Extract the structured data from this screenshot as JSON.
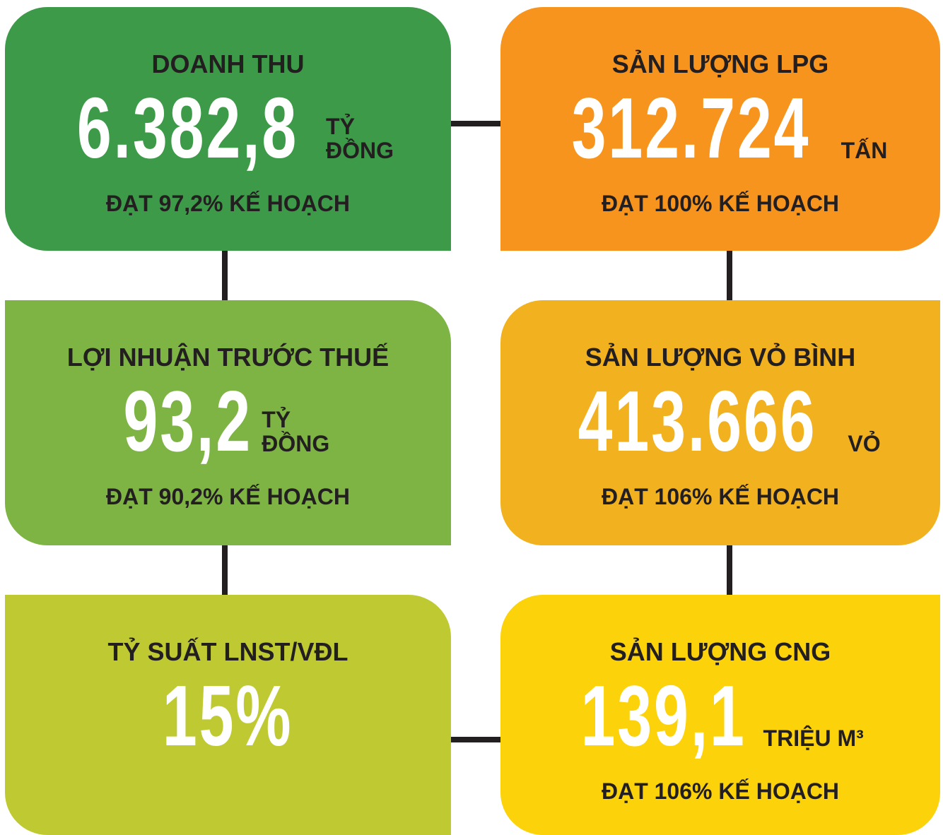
{
  "cards": [
    {
      "title": "DOANH THU",
      "value": "6.382,8",
      "unit": [
        "TỶ",
        "ĐỒNG"
      ],
      "note": "ĐẠT 97,2% KẾ HOẠCH"
    },
    {
      "title": "SẢN LƯỢNG LPG",
      "value": "312.724",
      "unit": [
        "TẤN"
      ],
      "note": "ĐẠT 100% KẾ HOẠCH"
    },
    {
      "title": "LỢI NHUẬN TRƯỚC THUẾ",
      "value": "93,2",
      "unit": [
        "TỶ",
        "ĐỒNG"
      ],
      "note": "ĐẠT 90,2% KẾ HOẠCH"
    },
    {
      "title": "SẢN LƯỢNG VỎ BÌNH",
      "value": "413.666",
      "unit": [
        "VỎ"
      ],
      "note": "ĐẠT 106% KẾ HOẠCH"
    },
    {
      "title": "TỶ SUẤT LNST/VĐL",
      "value": "15%"
    },
    {
      "title": "SẢN LƯỢNG CNG",
      "value": "139,1",
      "unit": [
        "TRIỆU M³"
      ],
      "note": "ĐẠT 106% KẾ HOẠCH"
    }
  ]
}
